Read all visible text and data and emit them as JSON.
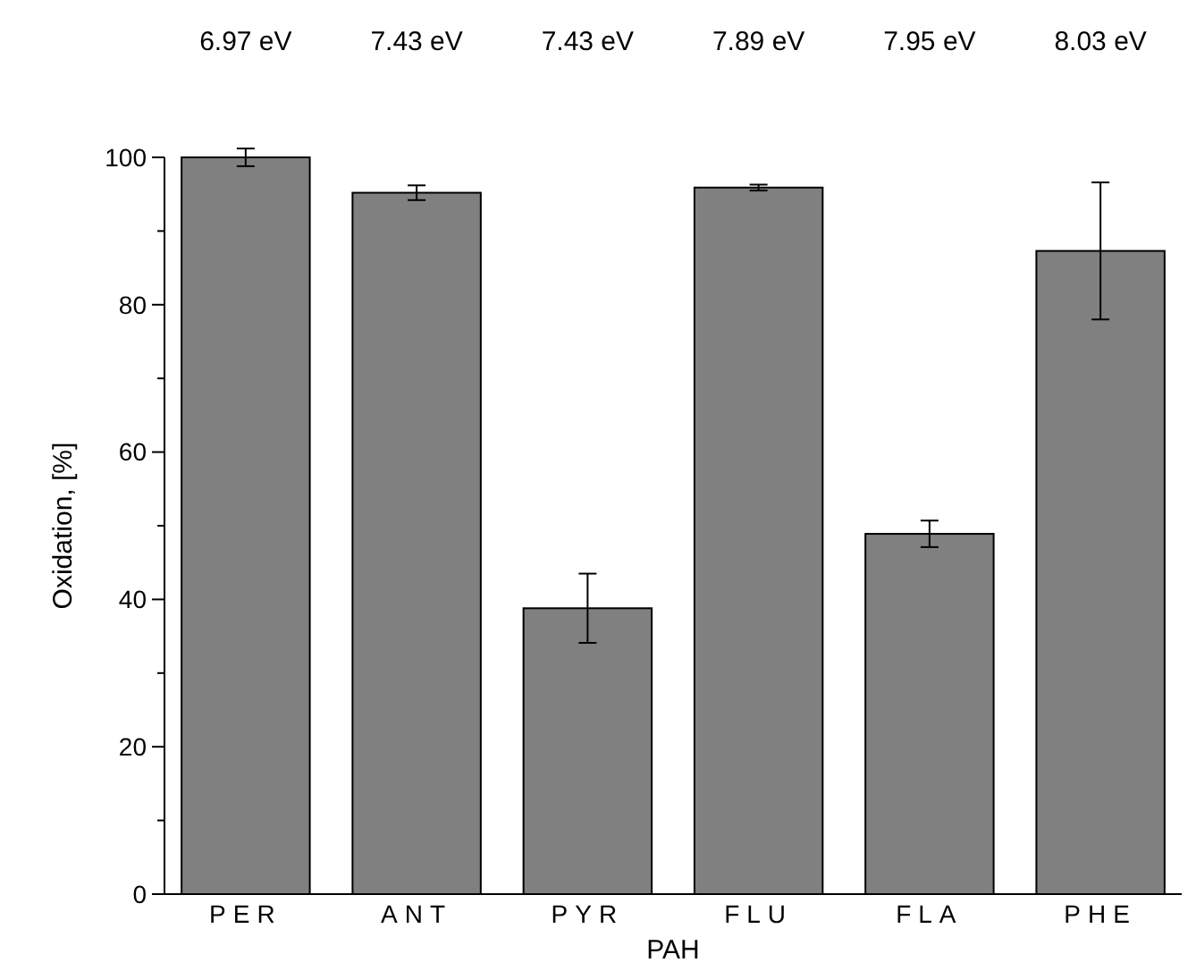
{
  "chart_data": {
    "type": "bar",
    "xlabel": "PAH",
    "ylabel": "Oxidation, [%]",
    "categories": [
      "PER",
      "ANT",
      "PYR",
      "FLU",
      "FLA",
      "PHE"
    ],
    "values": [
      100,
      95.2,
      38.8,
      95.9,
      48.9,
      87.3
    ],
    "errors": [
      1.2,
      1,
      4.7,
      0.4,
      1.8,
      9.3
    ],
    "color": "#808080",
    "ylim": [
      0,
      100
    ],
    "yticks": [
      0,
      {
        "value": 10,
        "label": null
      },
      20,
      {
        "value": 30,
        "label": null
      },
      40,
      {
        "value": 50,
        "label": null
      },
      60,
      {
        "value": 70,
        "label": null
      },
      80,
      {
        "value": 90,
        "label": null
      },
      100
    ],
    "annotations": [
      "6.97 eV",
      "7.43 eV",
      "7.43 eV",
      "7.89 eV",
      "7.95 eV",
      "8.03 eV"
    ]
  }
}
